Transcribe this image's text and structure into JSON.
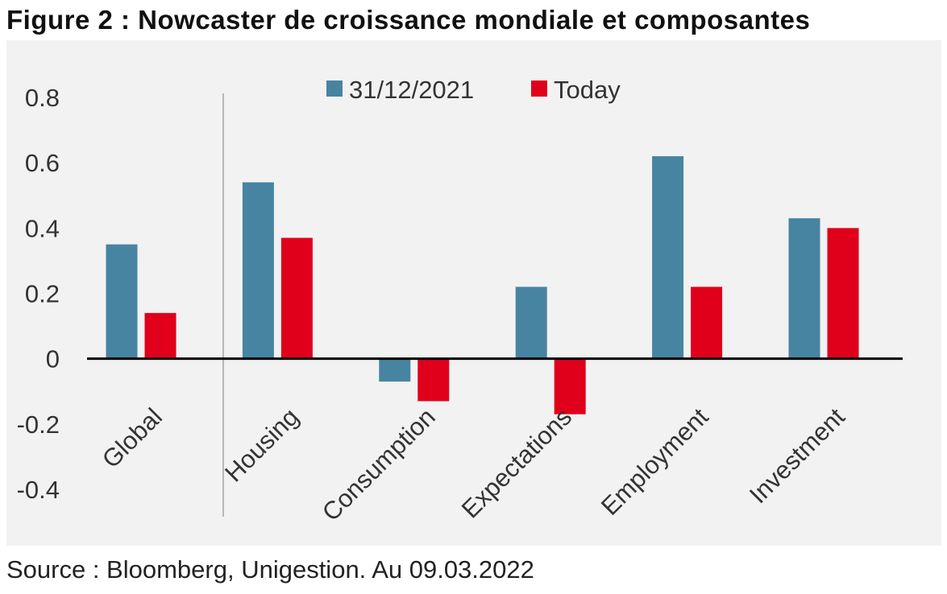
{
  "title": "Figure 2 : Nowcaster de croissance mondiale et composantes",
  "source": "Source : Bloomberg, Unigestion. Au 09.03.2022",
  "colors": {
    "series_1": "#4784a1",
    "series_2": "#e0001b",
    "background": "#f2f2f2"
  },
  "chart_data": {
    "type": "bar",
    "categories": [
      "Global",
      "Housing",
      "Consumption",
      "Expectations",
      "Employment",
      "Investment"
    ],
    "series": [
      {
        "name": "31/12/2021",
        "values": [
          0.35,
          0.54,
          -0.07,
          0.22,
          0.62,
          0.43
        ]
      },
      {
        "name": "Today",
        "values": [
          0.14,
          0.37,
          -0.13,
          -0.17,
          0.22,
          0.4
        ]
      }
    ],
    "y_ticks": [
      "0.8",
      "0.6",
      "0.4",
      "0.2",
      "0",
      "-0.2",
      "-0.4"
    ],
    "ylim": [
      -0.4,
      0.8
    ],
    "legend_position": "top-center",
    "grid": false,
    "separator_after_category": "Global"
  }
}
